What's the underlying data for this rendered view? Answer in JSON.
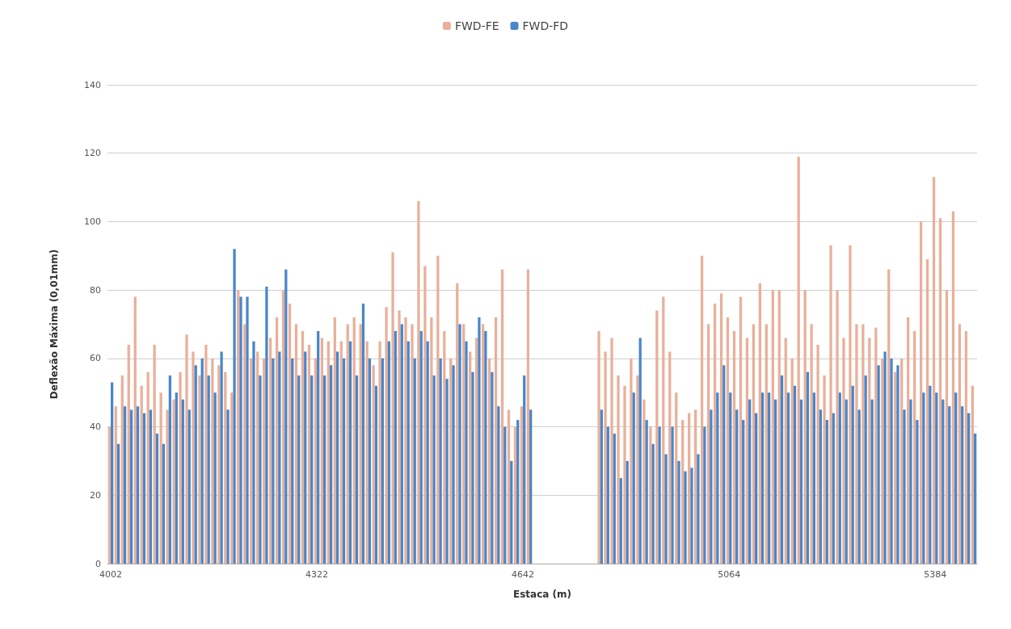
{
  "chart_data": {
    "type": "bar",
    "xlabel": "Estaca (m)",
    "ylabel": "Deflexão Máxima (0,01mm)",
    "categories": [
      "4002",
      null,
      null,
      null,
      null,
      null,
      null,
      null,
      null,
      null,
      null,
      null,
      null,
      null,
      null,
      null,
      null,
      null,
      null,
      null,
      null,
      null,
      null,
      null,
      null,
      null,
      null,
      null,
      null,
      null,
      null,
      null,
      "4322",
      null,
      null,
      null,
      null,
      null,
      null,
      null,
      null,
      null,
      null,
      null,
      null,
      null,
      null,
      null,
      null,
      null,
      null,
      null,
      null,
      null,
      null,
      null,
      null,
      null,
      null,
      null,
      null,
      null,
      null,
      null,
      "4642",
      null,
      null,
      null,
      null,
      null,
      null,
      null,
      null,
      null,
      null,
      null,
      null,
      null,
      null,
      null,
      null,
      null,
      null,
      null,
      null,
      null,
      null,
      null,
      null,
      null,
      null,
      null,
      null,
      null,
      null,
      null,
      "5064",
      null,
      null,
      null,
      null,
      null,
      null,
      null,
      null,
      null,
      null,
      null,
      null,
      null,
      null,
      null,
      null,
      null,
      null,
      null,
      null,
      null,
      null,
      null,
      null,
      null,
      null,
      null,
      null,
      null,
      null,
      null,
      "5384",
      null,
      null,
      null,
      null,
      null,
      null
    ],
    "series": [
      {
        "name": "FWD-FE",
        "color": "#e8b09a",
        "values": [
          40,
          46,
          55,
          64,
          78,
          52,
          56,
          64,
          50,
          45,
          48,
          56,
          67,
          62,
          55,
          64,
          60,
          58,
          56,
          50,
          80,
          70,
          60,
          62,
          60,
          66,
          72,
          80,
          76,
          70,
          68,
          64,
          60,
          66,
          65,
          72,
          65,
          70,
          72,
          70,
          65,
          58,
          65,
          75,
          91,
          74,
          72,
          70,
          106,
          87,
          72,
          90,
          68,
          60,
          82,
          70,
          62,
          66,
          70,
          60,
          72,
          86,
          45,
          40,
          46,
          86,
          null,
          null,
          null,
          null,
          null,
          null,
          null,
          null,
          null,
          null,
          68,
          62,
          66,
          55,
          52,
          60,
          55,
          48,
          40,
          74,
          78,
          62,
          50,
          42,
          44,
          45,
          90,
          70,
          76,
          79,
          72,
          68,
          78,
          66,
          70,
          82,
          70,
          80,
          80,
          66,
          60,
          119,
          80,
          70,
          64,
          55,
          93,
          80,
          66,
          93,
          70,
          70,
          66,
          69,
          60,
          86,
          56,
          60,
          72,
          68,
          100,
          89,
          113,
          101,
          80,
          103,
          70,
          68,
          52
        ]
      },
      {
        "name": "FWD-FD",
        "color": "#4a86c8",
        "values": [
          53,
          35,
          46,
          45,
          46,
          44,
          45,
          38,
          35,
          55,
          50,
          48,
          45,
          58,
          60,
          55,
          50,
          62,
          45,
          92,
          78,
          78,
          65,
          55,
          81,
          60,
          62,
          86,
          60,
          55,
          62,
          55,
          68,
          55,
          58,
          62,
          60,
          65,
          55,
          76,
          60,
          52,
          60,
          65,
          68,
          70,
          65,
          60,
          68,
          65,
          55,
          60,
          54,
          58,
          70,
          65,
          56,
          72,
          68,
          56,
          46,
          40,
          30,
          42,
          55,
          45,
          null,
          null,
          null,
          null,
          null,
          null,
          null,
          null,
          null,
          null,
          45,
          40,
          38,
          25,
          30,
          50,
          66,
          42,
          35,
          40,
          32,
          40,
          30,
          27,
          28,
          32,
          40,
          45,
          50,
          58,
          50,
          45,
          42,
          48,
          44,
          50,
          50,
          48,
          55,
          50,
          52,
          48,
          56,
          50,
          45,
          42,
          44,
          50,
          48,
          52,
          45,
          55,
          48,
          58,
          62,
          60,
          58,
          45,
          48,
          42,
          50,
          52,
          50,
          48,
          46,
          50,
          46,
          44,
          38
        ]
      }
    ],
    "ylim": [
      0,
      140
    ],
    "yticks": [
      0,
      20,
      40,
      60,
      80,
      100,
      120,
      140
    ],
    "grid": "y",
    "legend": "top"
  }
}
